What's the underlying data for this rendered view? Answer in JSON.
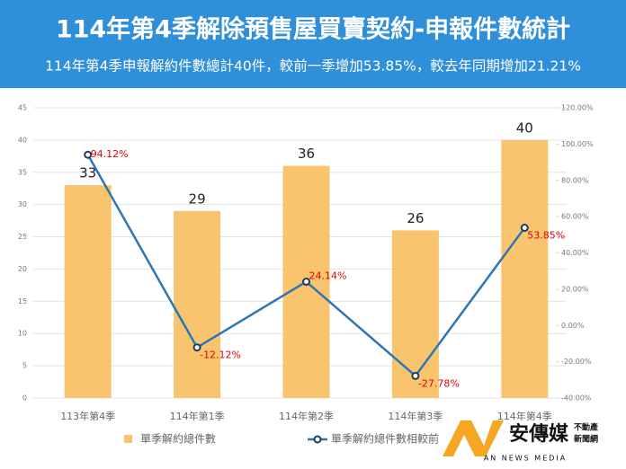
{
  "chart_data": {
    "type": "bar-line",
    "title": "114年第4季解除預售屋買賣契約-申報件數統計",
    "subtitle": "114年第4季申報解約件數總計40件，較前一季增加53.85%，較去年同期增加21.21%",
    "categories": [
      "113年第4季",
      "114年第1季",
      "114年第2季",
      "114年第3季",
      "114年第4季"
    ],
    "series": [
      {
        "name": "單季解約總件數",
        "type": "bar",
        "color": "#f9c46e",
        "values": [
          33,
          29,
          36,
          26,
          40
        ]
      },
      {
        "name": "單季解約總件數相較前",
        "type": "line",
        "axis": "y2",
        "color": "#2e75b6",
        "values": [
          94.12,
          -12.12,
          24.14,
          -27.78,
          53.85
        ],
        "value_labels": [
          "94.12%",
          "-12.12%",
          "24.14%",
          "-27.78%",
          "53.85%"
        ],
        "label_color": "#e00000"
      }
    ],
    "ylim": [
      0,
      45
    ],
    "yticks": [
      0,
      5,
      10,
      15,
      20,
      25,
      30,
      35,
      40,
      45
    ],
    "y2lim": [
      -40,
      120
    ],
    "y2ticks": [
      {
        "value": -40,
        "label": "-40.00%"
      },
      {
        "value": -20,
        "label": "-20.00%"
      },
      {
        "value": 0,
        "label": "0.00%"
      },
      {
        "value": 20,
        "label": "20.00%"
      },
      {
        "value": 40,
        "label": "40.00%"
      },
      {
        "value": 60,
        "label": "60.00%"
      },
      {
        "value": 80,
        "label": "80.00%"
      },
      {
        "value": 100,
        "label": "100.00%"
      },
      {
        "value": 120,
        "label": "120.00%"
      }
    ],
    "grid": true
  },
  "logo": {
    "name": "安傳媒",
    "tag1": "不動產",
    "tag2": "新聞網",
    "english": "AN NEWS MEDIA"
  }
}
